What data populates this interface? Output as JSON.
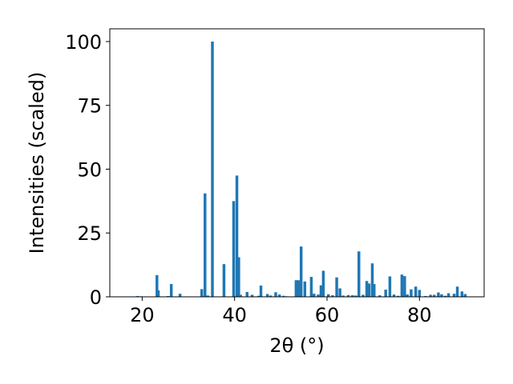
{
  "chart_data": {
    "type": "bar",
    "title": "",
    "xlabel": "2θ (°)",
    "ylabel": "Intensities (scaled)",
    "xlim": [
      13,
      94
    ],
    "ylim": [
      0,
      105
    ],
    "xticks": [
      20,
      40,
      60,
      80
    ],
    "yticks": [
      0,
      25,
      50,
      75,
      100
    ],
    "bar_color": "#1f77b4",
    "bar_width": 0.6,
    "grid": false,
    "legend": "none",
    "x": [
      19.0,
      19.8,
      23.2,
      23.5,
      25.6,
      26.3,
      28.2,
      32.9,
      33.6,
      34.2,
      35.2,
      37.7,
      39.8,
      40.5,
      40.9,
      41.3,
      42.7,
      43.8,
      45.2,
      45.7,
      47.1,
      47.8,
      48.9,
      49.7,
      50.6,
      51.3,
      53.3,
      53.8,
      54.4,
      55.2,
      56.6,
      57.2,
      58.1,
      58.7,
      59.2,
      60.3,
      61.2,
      62.1,
      62.8,
      63.5,
      64.6,
      65.5,
      66.2,
      66.9,
      67.8,
      68.6,
      69.1,
      69.8,
      70.2,
      71.4,
      72.7,
      73.6,
      74.5,
      75.4,
      76.2,
      76.8,
      77.4,
      78.2,
      79.2,
      80.0,
      81.3,
      82.4,
      83.2,
      84.1,
      84.8,
      85.6,
      86.3,
      87.5,
      88.2,
      89.2,
      89.9
    ],
    "values": [
      0.3,
      0.2,
      8.5,
      2.5,
      0.3,
      5.0,
      1.2,
      3.0,
      40.5,
      0.5,
      100.0,
      12.8,
      37.5,
      47.5,
      15.5,
      0.8,
      1.9,
      0.8,
      0.4,
      4.4,
      1.1,
      0.5,
      1.8,
      0.9,
      0.4,
      0.2,
      6.5,
      6.5,
      19.7,
      6.0,
      7.8,
      1.2,
      0.9,
      4.5,
      10.2,
      1.0,
      0.6,
      7.6,
      3.3,
      0.5,
      0.7,
      0.6,
      0.5,
      17.8,
      0.8,
      6.2,
      5.2,
      13.1,
      5.0,
      0.6,
      2.8,
      8.0,
      0.9,
      0.4,
      8.7,
      8.1,
      0.9,
      2.9,
      4.0,
      2.7,
      0.3,
      0.8,
      0.8,
      1.7,
      1.0,
      0.4,
      1.4,
      1.2,
      4.0,
      2.1,
      1.1
    ]
  }
}
